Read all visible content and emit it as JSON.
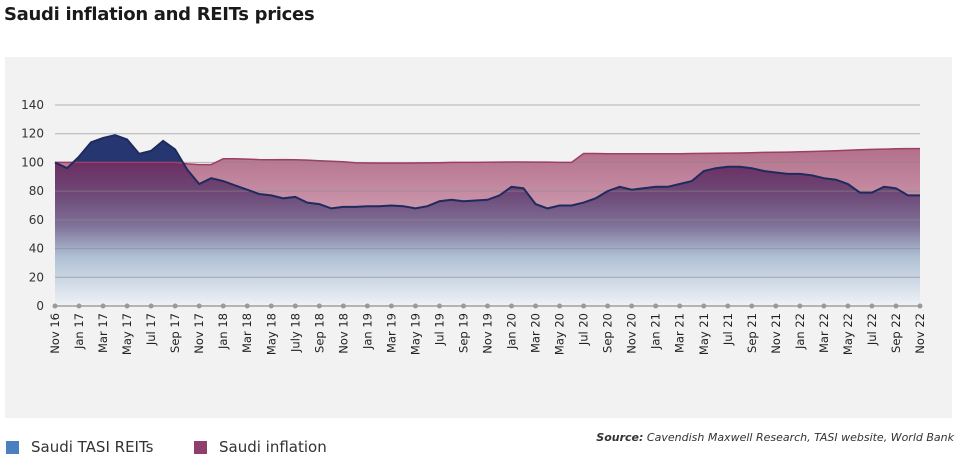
{
  "title": "Saudi inflation and REITs prices",
  "legend": [
    {
      "label": "Saudi TASI REITs",
      "color": "#4a7fc0"
    },
    {
      "label": "Saudi inflation",
      "color": "#8e3f6b"
    }
  ],
  "source": {
    "label": "Source:",
    "text": "Cavendish Maxwell Research, TASI website, World Bank"
  },
  "chart_data": {
    "type": "area",
    "title": "Saudi inflation and REITs prices",
    "ylim": [
      0,
      140
    ],
    "yticks": [
      0,
      20,
      40,
      60,
      80,
      100,
      120,
      140
    ],
    "grid": true,
    "legend_position": "bottom-left",
    "x": [
      "Nov 16",
      "Dec 16",
      "Jan 17",
      "Feb 17",
      "Mar 17",
      "Apr 17",
      "May 17",
      "Jun 17",
      "Jul 17",
      "Aug 17",
      "Sep 17",
      "Oct 17",
      "Nov 17",
      "Dec 17",
      "Jan 18",
      "Feb 18",
      "Mar 18",
      "Apr 18",
      "May 18",
      "Jun 18",
      "July 18",
      "Aug 18",
      "Sep 18",
      "Oct 18",
      "Nov 18",
      "Dec 18",
      "Jan 19",
      "Feb 19",
      "Mar 19",
      "Apr 19",
      "May 19",
      "Jun 19",
      "Jul 19",
      "Aug 19",
      "Sep 19",
      "Oct 19",
      "Nov 19",
      "Dec 19",
      "Jan 20",
      "Feb 20",
      "Mar 20",
      "Apr 20",
      "May 20",
      "Jun 20",
      "Jul 20",
      "Aug 20",
      "Sep 20",
      "Oct 20",
      "Nov 20",
      "Dec 20",
      "Jan 21",
      "Feb 21",
      "Mar 21",
      "Apr 21",
      "May 21",
      "Jun 21",
      "Jul 21",
      "Aug 21",
      "Sep 21",
      "Oct 21",
      "Nov 21",
      "Dec 21",
      "Jan 22",
      "Feb 22",
      "Mar 22",
      "Apr 22",
      "May 22",
      "Jun 22",
      "Jul 22",
      "Aug 22",
      "Sep 22",
      "Oct 22",
      "Nov 22"
    ],
    "xtick_labels": [
      "Nov 16",
      "Jan 17",
      "Mar 17",
      "May 17",
      "Jul 17",
      "Sep 17",
      "Nov 17",
      "Jan 18",
      "Mar 18",
      "May 18",
      "July 18",
      "Sep 18",
      "Nov 18",
      "Jan 19",
      "Mar 19",
      "May 19",
      "Jul 19",
      "Sep 19",
      "Nov 19",
      "Jan 20",
      "Mar 20",
      "May 20",
      "Jul 20",
      "Sep 20",
      "Nov 20",
      "Jan 21",
      "Mar 21",
      "May 21",
      "Jul 21",
      "Sep 21",
      "Nov 21",
      "Jan 22",
      "Mar 22",
      "May 22",
      "Jul 22",
      "Sep 22",
      "Nov 22"
    ],
    "series": [
      {
        "name": "Saudi inflation",
        "color": "#b4758e",
        "line_color": "#9c3e66",
        "values": [
          100,
          100,
          100,
          100,
          100,
          100,
          100,
          100,
          100,
          100,
          100,
          99,
          98.5,
          98.5,
          102.5,
          102.5,
          102.3,
          102,
          101.8,
          102,
          101.8,
          101.6,
          101.2,
          100.8,
          100.5,
          99.8,
          99.6,
          99.5,
          99.5,
          99.5,
          99.6,
          99.7,
          99.8,
          100,
          100,
          100,
          100.1,
          100.2,
          100.3,
          100.3,
          100.2,
          100.2,
          100,
          100,
          106.2,
          106.2,
          106.1,
          106.1,
          106,
          106.1,
          106,
          106,
          106.1,
          106.2,
          106.3,
          106.4,
          106.5,
          106.6,
          106.8,
          107,
          107.1,
          107.2,
          107.4,
          107.6,
          107.9,
          108.2,
          108.5,
          108.8,
          109.1,
          109.3,
          109.5,
          109.6,
          109.6
        ]
      },
      {
        "name": "Saudi TASI REITs",
        "color": "#253670",
        "line_color": "#1f2a5e",
        "values": [
          100,
          96,
          104,
          114,
          117,
          119,
          116,
          106,
          108,
          115,
          109,
          95,
          85,
          89,
          87,
          84,
          81,
          78,
          77,
          75,
          76,
          72,
          71,
          68,
          69,
          69,
          69.5,
          69.5,
          70,
          69.5,
          68,
          69.5,
          73,
          74,
          73,
          73.5,
          74,
          77,
          83,
          82,
          71,
          68,
          70,
          70,
          72,
          75,
          80,
          83,
          81,
          82,
          83,
          83,
          85,
          87,
          94,
          96,
          97,
          97,
          96,
          94,
          93,
          92,
          92,
          91,
          89,
          88,
          85,
          79,
          79,
          83,
          82,
          77,
          77
        ]
      }
    ]
  }
}
